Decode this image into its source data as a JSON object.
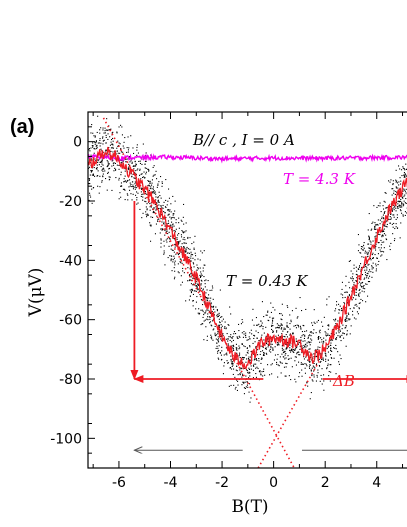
{
  "panel_label": "(a)",
  "colors": {
    "raw": "#000000",
    "low_T": "#ee1c24",
    "high_T": "#ee00ee",
    "arrow_red": "#ee1c24",
    "arrow_gray": "#555555"
  },
  "chart_data": {
    "type": "line",
    "xlabel": "B(T)",
    "ylabel": "V(μV)",
    "xlim": [
      -7.2,
      5.6
    ],
    "ylim": [
      -110,
      10
    ],
    "xticks": [
      -6,
      -4,
      -2,
      0,
      2,
      4
    ],
    "yticks": [
      0,
      -20,
      -40,
      -60,
      -80,
      -100
    ],
    "xtick_labels": [
      "-6",
      "-4",
      "-2",
      "0",
      "2",
      "4"
    ],
    "ytick_labels": [
      "0",
      "-20",
      "-40",
      "-60",
      "-80",
      "-100"
    ],
    "annotations": {
      "condition": "B// c ,  I = 0 A",
      "high_T_label": "T = 4.3 K",
      "low_T_label": "T = 0.43 K",
      "delta_B": "ΔB"
    },
    "series": [
      {
        "name": "T = 4.3 K",
        "style": "magenta line",
        "x": [
          -7.2,
          -6,
          -4,
          -2,
          0,
          2,
          4,
          5.6
        ],
        "y": [
          -5,
          -5.5,
          -5.2,
          -5.8,
          -5.5,
          -5.6,
          -5.4,
          -5.2
        ]
      },
      {
        "name": "T = 0.43 K",
        "style": "red line",
        "x": [
          -7.2,
          -6.5,
          -6.0,
          -5.6,
          -5.0,
          -4.5,
          -4.0,
          -3.5,
          -3.0,
          -2.5,
          -2.0,
          -1.5,
          -1.0,
          -0.5,
          0.0,
          0.5,
          1.0,
          1.5,
          2.0,
          2.5,
          3.0,
          3.5,
          4.0,
          4.5,
          5.0,
          5.5
        ],
        "y": [
          -8,
          -3,
          -6,
          -10,
          -16,
          -22,
          -30,
          -38,
          -46,
          -56,
          -66,
          -73,
          -75,
          -68,
          -66,
          -67,
          -68,
          -73,
          -70,
          -62,
          -52,
          -42,
          -32,
          -23,
          -16,
          -9
        ]
      },
      {
        "name": "raw data",
        "style": "black scattered points",
        "x": [
          -7.2,
          -6.5,
          -6.0,
          -5.6,
          -5.0,
          -4.5,
          -4.0,
          -3.5,
          -3.0,
          -2.5,
          -2.0,
          -1.5,
          -1.0,
          -0.5,
          0.0,
          0.5,
          1.0,
          1.5,
          2.0,
          2.5,
          3.0,
          3.5,
          4.0,
          4.5,
          5.0,
          5.5
        ],
        "y": [
          -8,
          -3,
          -6,
          -10,
          -16,
          -22,
          -30,
          -38,
          -46,
          -56,
          -66,
          -73,
          -75,
          -68,
          -66,
          -67,
          -68,
          -73,
          -70,
          -62,
          -52,
          -42,
          -32,
          -23,
          -16,
          -9
        ],
        "spread": 15
      },
      {
        "name": "extrapolation",
        "style": "red dotted",
        "lines": [
          {
            "x": [
              -6.6,
              0.8
            ],
            "y": [
              8,
              -110
            ]
          },
          {
            "x": [
              -0.6,
              1.9
            ],
            "y": [
              -110,
              -72
            ]
          }
        ]
      }
    ],
    "arrows": {
      "red_vertical": [
        {
          "x": -5.4,
          "y_from": -20,
          "y_to": -80
        },
        {
          "x": 5.5,
          "y_from": -10,
          "y_to": -80
        }
      ],
      "red_horizontal": [
        {
          "x_from": -0.4,
          "x_to": -5.4,
          "y": -80
        },
        {
          "x_from": 1.9,
          "x_to": 5.5,
          "y": -80
        }
      ],
      "gray_horizontal": [
        {
          "x_from": -1.2,
          "x_to": -5.4,
          "y": -104
        },
        {
          "x_from": 1.1,
          "x_to": 5.5,
          "y": -104
        }
      ]
    }
  }
}
